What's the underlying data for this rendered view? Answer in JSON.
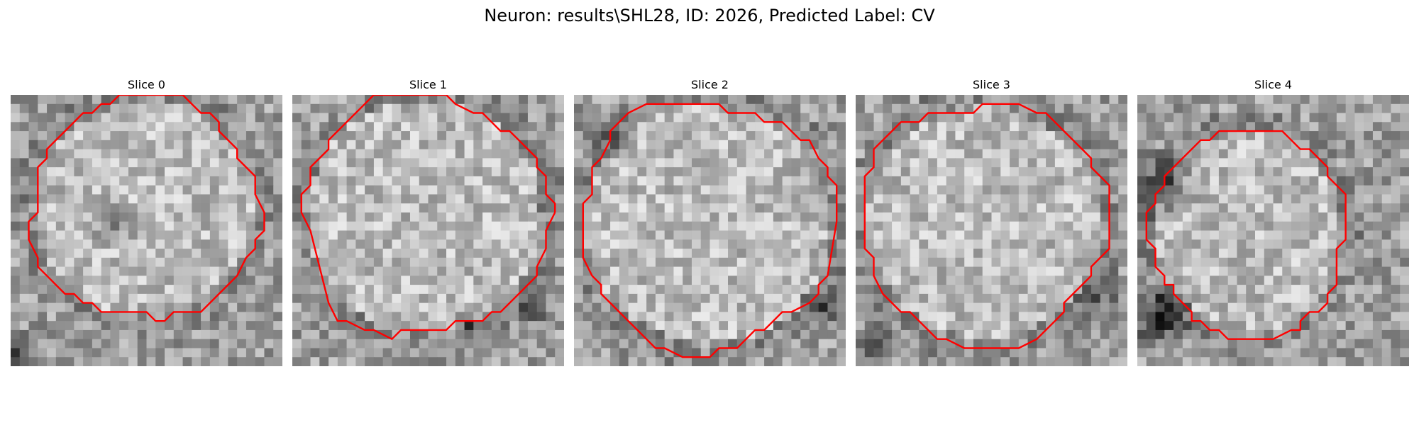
{
  "figure": {
    "title": "Neuron: results\\SHL28, ID: 2026, Predicted Label: CV",
    "contour_color": "#ff0000",
    "colormap": "grayscale",
    "grid_size": 30
  },
  "slices": [
    {
      "title": "Slice 0"
    },
    {
      "title": "Slice 1"
    },
    {
      "title": "Slice 2"
    },
    {
      "title": "Slice 3"
    },
    {
      "title": "Slice 4"
    }
  ]
}
